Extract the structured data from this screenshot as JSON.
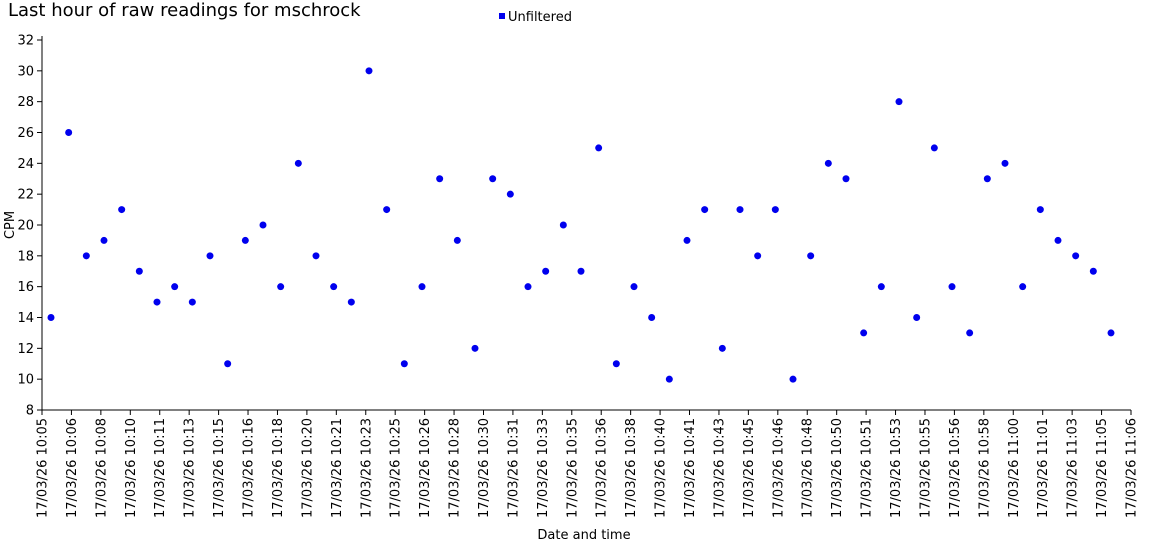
{
  "chart_data": {
    "type": "scatter",
    "title": "Last hour of raw readings for mschrock",
    "xlabel": "Date and time",
    "ylabel": "CPM",
    "ylim": [
      8,
      32
    ],
    "yticks": [
      8,
      10,
      12,
      14,
      16,
      18,
      20,
      22,
      24,
      26,
      28,
      30,
      32
    ],
    "grid": false,
    "legend_position": "top-center",
    "series_color": "#0000ee",
    "xtick_labels": [
      "17/03/26 10:05",
      "17/03/26 10:06",
      "17/03/26 10:08",
      "17/03/26 10:10",
      "17/03/26 10:11",
      "17/03/26 10:13",
      "17/03/26 10:15",
      "17/03/26 10:16",
      "17/03/26 10:18",
      "17/03/26 10:20",
      "17/03/26 10:21",
      "17/03/26 10:23",
      "17/03/26 10:25",
      "17/03/26 10:26",
      "17/03/26 10:28",
      "17/03/26 10:30",
      "17/03/26 10:31",
      "17/03/26 10:33",
      "17/03/26 10:35",
      "17/03/26 10:36",
      "17/03/26 10:38",
      "17/03/26 10:40",
      "17/03/26 10:41",
      "17/03/26 10:43",
      "17/03/26 10:45",
      "17/03/26 10:46",
      "17/03/26 10:48",
      "17/03/26 10:50",
      "17/03/26 10:51",
      "17/03/26 10:53",
      "17/03/26 10:55",
      "17/03/26 10:56",
      "17/03/26 10:58",
      "17/03/26 11:00",
      "17/03/26 11:01",
      "17/03/26 11:03",
      "17/03/26 11:05",
      "17/03/26 11:06"
    ],
    "series": [
      {
        "name": "Unfiltered",
        "values": [
          14,
          26,
          18,
          19,
          21,
          17,
          15,
          16,
          15,
          18,
          11,
          19,
          20,
          16,
          24,
          18,
          16,
          15,
          30,
          21,
          11,
          16,
          23,
          19,
          12,
          23,
          22,
          16,
          17,
          20,
          17,
          25,
          11,
          16,
          14,
          10,
          19,
          21,
          12,
          21,
          18,
          21,
          10,
          18,
          24,
          23,
          13,
          16,
          28,
          14,
          25,
          16,
          13,
          23,
          24,
          16,
          21,
          19,
          18,
          17,
          13
        ]
      }
    ]
  }
}
